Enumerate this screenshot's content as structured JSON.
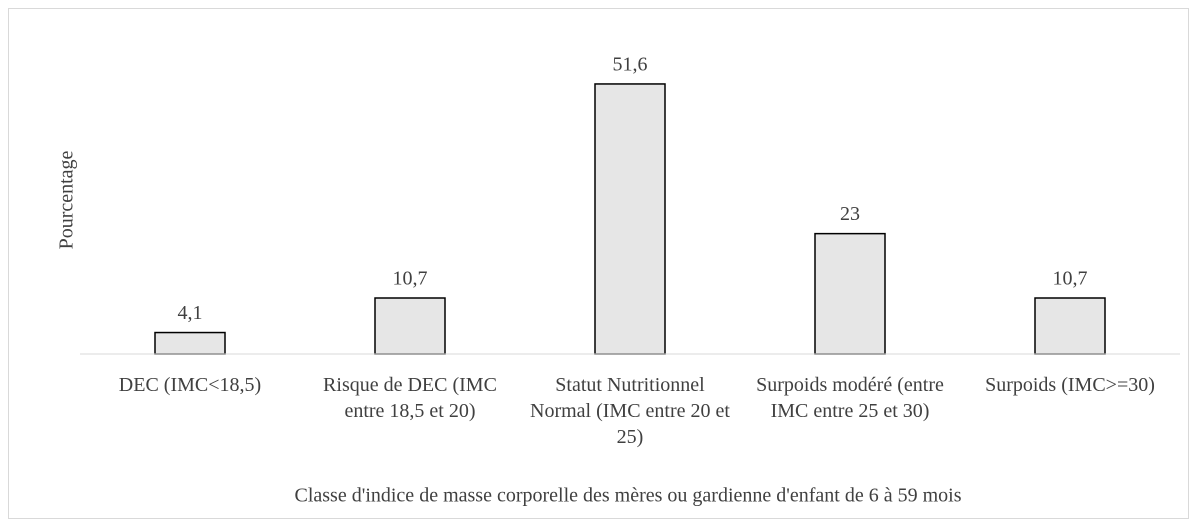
{
  "chart_data": {
    "type": "bar",
    "categories": [
      "DEC (IMC<18,5)",
      "Risque de DEC (IMC entre 18,5 et 20)",
      "Statut Nutritionnel Normal (IMC entre 20 et 25)",
      "Surpoids modéré (entre IMC entre 25 et 30)",
      "Surpoids (IMC>=30)"
    ],
    "values": [
      4.1,
      10.7,
      51.6,
      23,
      10.7
    ],
    "value_labels": [
      "4,1",
      "10,7",
      "51,6",
      "23",
      "10,7"
    ],
    "color": "#e6e6e6",
    "ylim": [
      0,
      60
    ],
    "y_label": "Pourcentage",
    "x_label": "Classe d'indice de masse corporelle des mères ou gardienne d'enfant de 6 à 59 mois"
  }
}
